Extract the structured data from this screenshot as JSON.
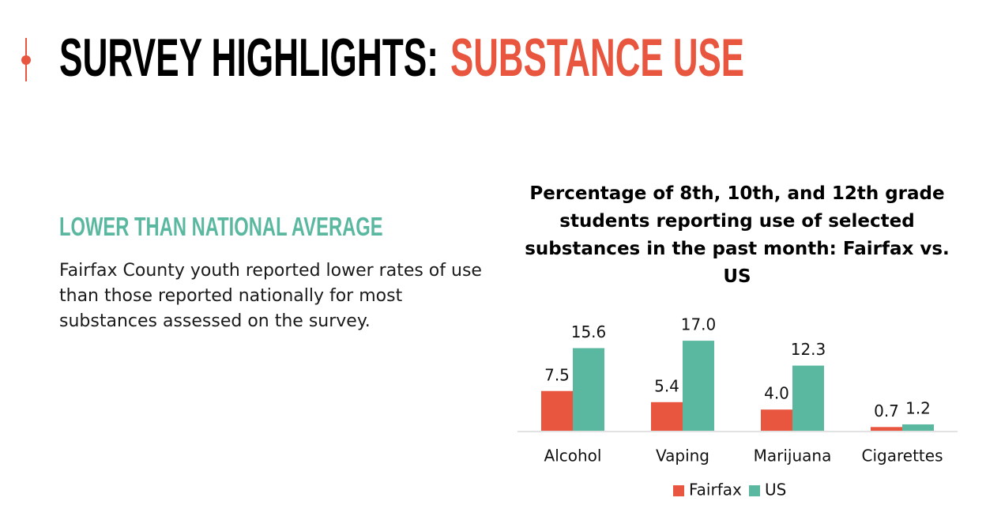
{
  "header": {
    "title_lead": "SURVEY HIGHLIGHTS:",
    "title_accent": "SUBSTANCE USE"
  },
  "section": {
    "heading": "LOWER THAN NATIONAL AVERAGE",
    "body_lines": [
      "Fairfax County youth reported lower rates of use",
      "than those reported nationally for most",
      "substances assessed on the survey."
    ]
  },
  "chart_data": {
    "type": "bar",
    "title": "Percentage of 8th, 10th, and 12th grade students reporting use of selected substances in the past month: Fairfax vs. US",
    "categories": [
      "Alcohol",
      "Vaping",
      "Marijuana",
      "Cigarettes"
    ],
    "series": [
      {
        "name": "Fairfax",
        "color": "#e8563f",
        "values": [
          7.5,
          5.4,
          4.0,
          0.7
        ],
        "value_labels": [
          "7.5",
          "5.4",
          "4.0",
          "0.7"
        ]
      },
      {
        "name": "US",
        "color": "#5bb8a0",
        "values": [
          15.6,
          17.0,
          12.3,
          1.2
        ],
        "value_labels": [
          "15.6",
          "17.0",
          "12.3",
          "1.2"
        ]
      }
    ],
    "legend": "bottom"
  }
}
